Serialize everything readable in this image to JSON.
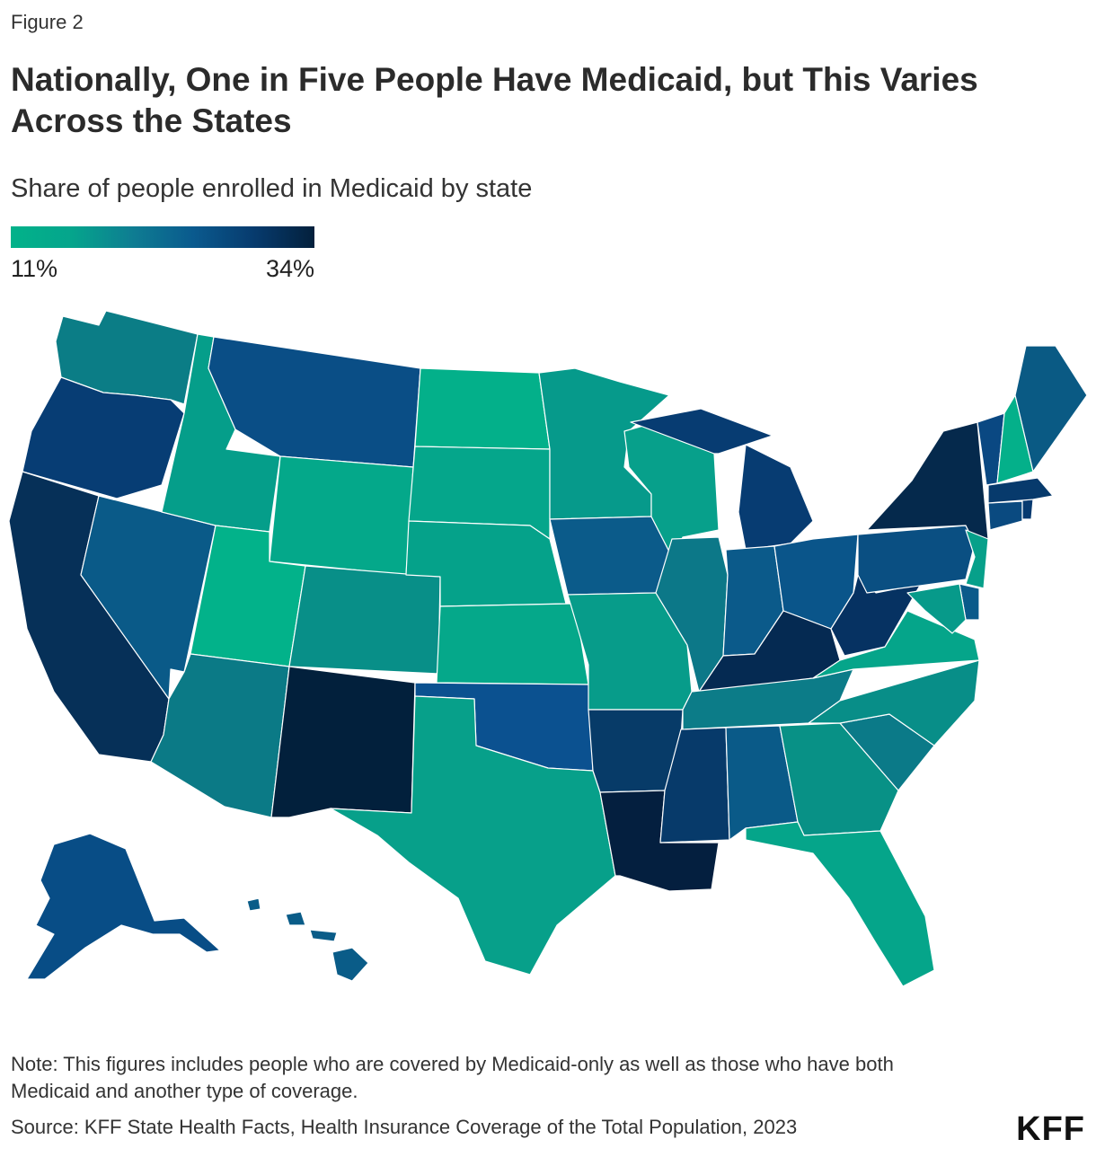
{
  "figure_label": "Figure 2",
  "title": "Nationally, One in Five People Have Medicaid, but This Varies Across the States",
  "subtitle": "Share of people enrolled in Medicaid by state",
  "legend": {
    "min_label": "11%",
    "max_label": "34%",
    "min_value": 11,
    "max_value": 34,
    "gradient_colors": [
      "#02b28a",
      "#05a58c",
      "#0e7d92",
      "#0a5a8e",
      "#073b6e",
      "#03203c"
    ]
  },
  "chart_data": {
    "type": "choropleth",
    "title": "Share of people enrolled in Medicaid by state",
    "unit": "%",
    "scale_range": [
      11,
      34
    ],
    "estimated_colors": {
      "WA": "#0b7d86",
      "OR": "#073d74",
      "CA": "#063058",
      "NV": "#0a5a88",
      "ID": "#059e8a",
      "MT": "#0a4e86",
      "WY": "#04a88a",
      "UT": "#02b28a",
      "AZ": "#0b7a86",
      "CO": "#088f88",
      "NM": "#02203c",
      "ND": "#03b08a",
      "SD": "#05a68b",
      "NE": "#05a28a",
      "KS": "#05a88a",
      "OK": "#0b5190",
      "TX": "#07a08a",
      "MN": "#069a8b",
      "IA": "#0b5b8a",
      "MO": "#079c8a",
      "AR": "#073b68",
      "LA": "#041f3f",
      "WI": "#07a08b",
      "IL": "#0c7888",
      "MI": "#073c72",
      "IN": "#0b5a8a",
      "OH": "#0a558a",
      "KY": "#052a52",
      "TN": "#0c7c88",
      "MS": "#073a6a",
      "AL": "#0a5a88",
      "GA": "#089186",
      "FL": "#05a58a",
      "SC": "#0b7a88",
      "NC": "#088e88",
      "VA": "#05a58a",
      "WV": "#063262",
      "PA": "#0a4f82",
      "NY": "#05294c",
      "NJ": "#07a08a",
      "DE": "#0a5a8a",
      "MD": "#079a8a",
      "CT": "#0a4a80",
      "RI": "#063a70",
      "MA": "#073a6c",
      "VT": "#0a4882",
      "NH": "#04b08a",
      "ME": "#0a5a84",
      "AK": "#084d86",
      "HI": "#0a5c88"
    }
  },
  "note": "Note: This figures includes people who are covered by Medicaid-only as well as those who have both Medicaid and another type of coverage.",
  "source": "Source: KFF State Health Facts, Health Insurance Coverage of the Total Population, 2023",
  "logo_text": "KFF"
}
